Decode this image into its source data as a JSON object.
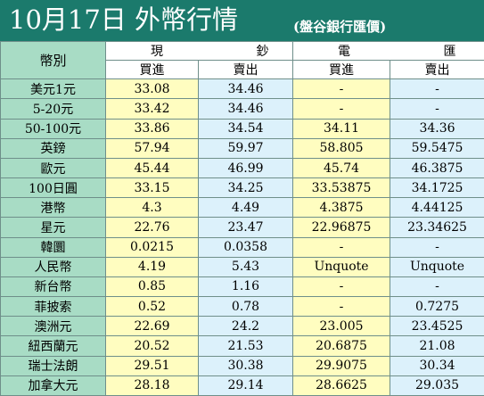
{
  "header": {
    "title": "10月17日 外幣行情",
    "subtitle": "(盤谷銀行匯價)"
  },
  "table": {
    "corner_label": "幣別",
    "group_cash": "現 鈔",
    "group_transfer": "電 匯",
    "col_buy_cash": "買進",
    "col_sell_cash": "賣出",
    "col_buy_transfer": "買進",
    "col_sell_transfer": "賣出",
    "rows": [
      {
        "currency": "美元1元",
        "cash_buy": "33.08",
        "cash_sell": "34.46",
        "tt_buy": "-",
        "tt_sell": "-"
      },
      {
        "currency": "5-20元",
        "cash_buy": "33.42",
        "cash_sell": "34.46",
        "tt_buy": "-",
        "tt_sell": "-"
      },
      {
        "currency": "50-100元",
        "cash_buy": "33.86",
        "cash_sell": "34.54",
        "tt_buy": "34.11",
        "tt_sell": "34.36"
      },
      {
        "currency": "英鎊",
        "cash_buy": "57.94",
        "cash_sell": "59.97",
        "tt_buy": "58.805",
        "tt_sell": "59.5475"
      },
      {
        "currency": "歐元",
        "cash_buy": "45.44",
        "cash_sell": "46.99",
        "tt_buy": "45.74",
        "tt_sell": "46.3875"
      },
      {
        "currency": "100日圓",
        "cash_buy": "33.15",
        "cash_sell": "34.25",
        "tt_buy": "33.53875",
        "tt_sell": "34.1725"
      },
      {
        "currency": "港幣",
        "cash_buy": "4.3",
        "cash_sell": "4.49",
        "tt_buy": "4.3875",
        "tt_sell": "4.44125"
      },
      {
        "currency": "星元",
        "cash_buy": "22.76",
        "cash_sell": "23.47",
        "tt_buy": "22.96875",
        "tt_sell": "23.34625"
      },
      {
        "currency": "韓圜",
        "cash_buy": "0.0215",
        "cash_sell": "0.0358",
        "tt_buy": "-",
        "tt_sell": "-"
      },
      {
        "currency": "人民幣",
        "cash_buy": "4.19",
        "cash_sell": "5.43",
        "tt_buy": "Unquote",
        "tt_sell": "Unquote"
      },
      {
        "currency": "新台幣",
        "cash_buy": "0.85",
        "cash_sell": "1.16",
        "tt_buy": "-",
        "tt_sell": "-"
      },
      {
        "currency": "菲披索",
        "cash_buy": "0.52",
        "cash_sell": "0.78",
        "tt_buy": "-",
        "tt_sell": "0.7275"
      },
      {
        "currency": "澳洲元",
        "cash_buy": "22.69",
        "cash_sell": "24.2",
        "tt_buy": "23.005",
        "tt_sell": "23.4525"
      },
      {
        "currency": "紐西蘭元",
        "cash_buy": "20.52",
        "cash_sell": "21.53",
        "tt_buy": "20.6875",
        "tt_sell": "21.08"
      },
      {
        "currency": "瑞士法朗",
        "cash_buy": "29.51",
        "cash_sell": "30.38",
        "tt_buy": "29.9075",
        "tt_sell": "30.34"
      },
      {
        "currency": "加拿大元",
        "cash_buy": "28.18",
        "cash_sell": "29.14",
        "tt_buy": "28.6625",
        "tt_sell": "29.035"
      }
    ]
  }
}
